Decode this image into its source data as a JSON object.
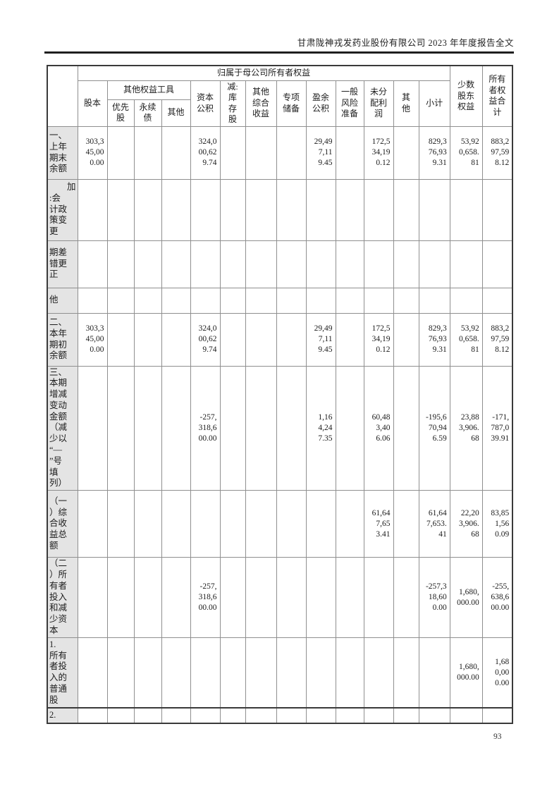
{
  "page": {
    "header_title": "甘肃陇神戎发药业股份有限公司 2023 年年度报告全文",
    "page_number": "93"
  },
  "colors": {
    "shaded_cell": "#e4e4e4",
    "grid_border": "#8f8f8f",
    "outer_border": "#3a3a3a",
    "text": "#1c1c1c"
  },
  "table": {
    "header": {
      "corner": "",
      "parent_group": "归属于母公司所有者权益",
      "other_equity_group": "其他权益工具",
      "share_capital": "股本",
      "preferred_stock": "优先股",
      "perpetual_bond": "永续债",
      "other_instruments": "其他",
      "capital_reserve": "资本公积",
      "less_treasury_stock": "减:库存股",
      "other_comprehensive_income": "其他综合收益",
      "special_reserve": "专项储备",
      "surplus_reserve": "盈余公积",
      "general_risk_reserve": "一般风险准备",
      "undistributed_profit": "未分配利润",
      "other": "其他",
      "subtotal": "小计",
      "minority_interest": "少数股东权益",
      "total_equity": "所有者权益合计"
    },
    "rows": [
      {
        "label": "一、\n上年\n期末\n余额",
        "label_full": "一、上年期末余额",
        "values": [
          "303,345,000.00",
          "",
          "",
          "",
          "324,000,629.74",
          "",
          "",
          "",
          "29,497,119.45",
          "",
          "172,534,190.12",
          "",
          "829,376,939.31",
          "53,920,658.81",
          "883,297,598.12"
        ]
      },
      {
        "label": "　　加\n:会\n计政\n策变\n更",
        "label_full": "加:会计政策变更",
        "values": [
          "",
          "",
          "",
          "",
          "",
          "",
          "",
          "",
          "",
          "",
          "",
          "",
          "",
          "",
          ""
        ]
      },
      {
        "label": "期差\n错更\n正",
        "label_full": "期差错更正",
        "values": [
          "",
          "",
          "",
          "",
          "",
          "",
          "",
          "",
          "",
          "",
          "",
          "",
          "",
          "",
          ""
        ]
      },
      {
        "label": "他",
        "label_full": "他",
        "values": [
          "",
          "",
          "",
          "",
          "",
          "",
          "",
          "",
          "",
          "",
          "",
          "",
          "",
          "",
          ""
        ]
      },
      {
        "label": "二、\n本年\n期初\n余额",
        "label_full": "二、本年期初余额",
        "values": [
          "303,345,000.00",
          "",
          "",
          "",
          "324,000,629.74",
          "",
          "",
          "",
          "29,497,119.45",
          "",
          "172,534,190.12",
          "",
          "829,376,939.31",
          "53,920,658.81",
          "883,297,598.12"
        ]
      },
      {
        "label": "三、\n本期\n增减\n变动\n金额\n（减\n少以\n“—\n”号\n填\n列）",
        "label_full": "三、本期增减变动金额（减少以“—”号填列）",
        "values": [
          "",
          "",
          "",
          "",
          "-257,318,600.00",
          "",
          "",
          "",
          "1,164,247.35",
          "",
          "60,483,406.06",
          "",
          "-195,670,946.59",
          "23,883,906.68",
          "-171,787,039.91"
        ]
      },
      {
        "label": "（一\n）综\n合收\n益总\n额",
        "label_full": "（一）综合收益总额",
        "values": [
          "",
          "",
          "",
          "",
          "",
          "",
          "",
          "",
          "",
          "",
          "61,647,653.41",
          "",
          "61,647,653.41",
          "22,203,906.68",
          "83,851,560.09"
        ]
      },
      {
        "label": "（二\n）所\n有者\n投入\n和减\n少资\n本",
        "label_full": "（二）所有者投入和减少资本",
        "values": [
          "",
          "",
          "",
          "",
          "-257,318,600.00",
          "",
          "",
          "",
          "",
          "",
          "",
          "",
          "-257,318,600.00",
          "1,680,000.00",
          "-255,638,600.00"
        ]
      },
      {
        "label": "1.\n所有\n者投\n入的\n普通\n股",
        "label_full": "1.所有者投入的普通股",
        "values": [
          "",
          "",
          "",
          "",
          "",
          "",
          "",
          "",
          "",
          "",
          "",
          "",
          "",
          "1,680,000.00",
          "1,680,000.00"
        ]
      },
      {
        "label": "2.",
        "label_full": "2.",
        "values": [
          "",
          "",
          "",
          "",
          "",
          "",
          "",
          "",
          "",
          "",
          "",
          "",
          "",
          "",
          ""
        ]
      }
    ]
  }
}
